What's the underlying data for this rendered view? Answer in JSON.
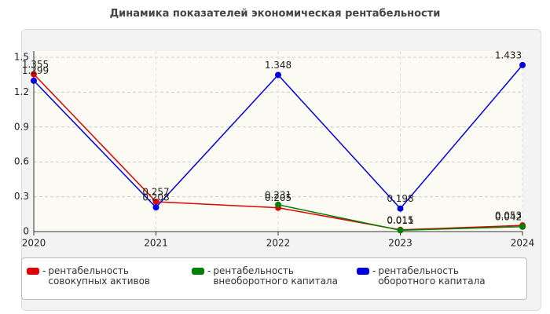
{
  "chart_data": {
    "type": "line",
    "title": "Динамика показателей экономическая рентабельности",
    "categories": [
      "2020",
      "2021",
      "2022",
      "2023",
      "2024"
    ],
    "series": [
      {
        "name": "рентабельность совокупных активов",
        "color": "#e00000",
        "values": [
          1.355,
          0.257,
          0.205,
          0.015,
          0.053
        ]
      },
      {
        "name": "рентабельность внеоборотного капитала",
        "color": "#008000",
        "values": [
          null,
          null,
          0.231,
          0.011,
          0.042
        ]
      },
      {
        "name": "рентабельность оборотного капитала",
        "color": "#0000dd",
        "values": [
          1.299,
          0.208,
          1.348,
          0.198,
          1.433
        ]
      }
    ],
    "ylim": [
      0,
      1.5
    ],
    "yticks": [
      0,
      0.3,
      0.6,
      0.9,
      1.2,
      1.5
    ],
    "grid": true
  }
}
